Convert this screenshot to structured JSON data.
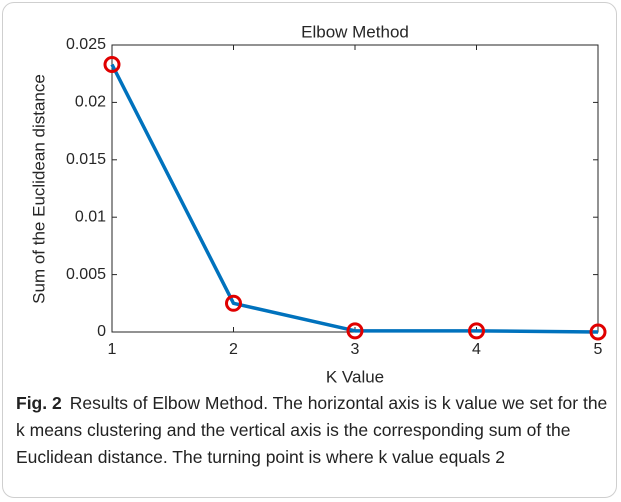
{
  "chart_data": {
    "type": "line",
    "title": "Elbow Method",
    "xlabel": "K Value",
    "ylabel": "Sum of the Euclidean distance",
    "x": [
      1,
      2,
      3,
      4,
      5
    ],
    "series": [
      {
        "name": "Elbow",
        "color": "#0072bd",
        "marker_color": "#e00000",
        "values": [
          0.0233,
          0.0025,
          0.0001,
          0.0001,
          0
        ]
      }
    ],
    "xlim": [
      1,
      5
    ],
    "xticks": [
      1,
      2,
      3,
      4,
      5
    ],
    "ylim": [
      0,
      0.025
    ],
    "yticks": [
      0,
      0.005,
      0.01,
      0.015,
      0.02,
      0.025
    ],
    "grid": false
  },
  "caption": {
    "label": "Fig. 2",
    "text": "Results of Elbow Method. The horizontal axis is k value we set for the k means clustering and the vertical axis is the corresponding sum of the Euclidean distance. The turning point is where k value equals 2"
  }
}
